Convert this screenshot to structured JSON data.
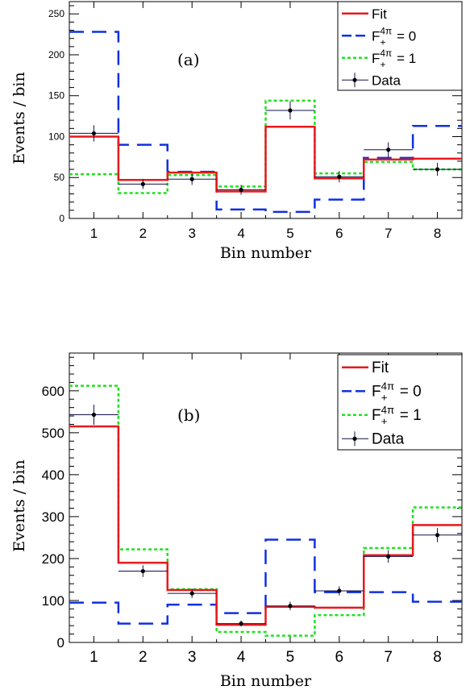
{
  "charts": [
    {
      "panel_label": "(a)",
      "xlabel": "Bin number",
      "ylabel": "Events / bin",
      "x_ticks": [
        "1",
        "2",
        "3",
        "4",
        "5",
        "6",
        "7",
        "8"
      ],
      "y_ticks": [
        "0",
        "50",
        "100",
        "150",
        "200",
        "250"
      ],
      "legend": [
        "Fit",
        "F+4π = 0",
        "F+4π = 1",
        "Data"
      ]
    },
    {
      "panel_label": "(b)",
      "xlabel": "Bin number",
      "ylabel": "Events / bin",
      "x_ticks": [
        "1",
        "2",
        "3",
        "4",
        "5",
        "6",
        "7",
        "8"
      ],
      "y_ticks": [
        "0",
        "100",
        "200",
        "300",
        "400",
        "500",
        "600"
      ],
      "legend": [
        "Fit",
        "F+4π = 0",
        "F+4π = 1",
        "Data"
      ]
    }
  ],
  "colors": {
    "fit": "#e8191c",
    "f0": "#1030e0",
    "f1": "#22e022",
    "data": "#10104a"
  },
  "chart_data": [
    {
      "type": "step-histogram",
      "categories": [
        "1",
        "2",
        "3",
        "4",
        "5",
        "6",
        "7",
        "8"
      ],
      "xlabel": "Bin number",
      "ylabel": "Events / bin",
      "ylim": [
        0,
        265
      ],
      "xlim": [
        0.5,
        8.5
      ],
      "legend_position": "top-right",
      "series": [
        {
          "name": "Fit",
          "style": "solid",
          "values": [
            100,
            47,
            56,
            33,
            112,
            49,
            72,
            73
          ]
        },
        {
          "name": "F+4π = 0",
          "style": "dashed",
          "values": [
            228,
            90,
            57,
            11,
            8,
            23,
            74,
            113
          ]
        },
        {
          "name": "F+4π = 1",
          "style": "dotted",
          "values": [
            54,
            31,
            53,
            39,
            144,
            55,
            69,
            60
          ]
        },
        {
          "name": "Data",
          "style": "points",
          "values": [
            104,
            42,
            48,
            35,
            132,
            51,
            84,
            60
          ],
          "errors": [
            10,
            6,
            7,
            6,
            11,
            7,
            9,
            8
          ]
        }
      ]
    },
    {
      "type": "step-histogram",
      "categories": [
        "1",
        "2",
        "3",
        "4",
        "5",
        "6",
        "7",
        "8"
      ],
      "xlabel": "Bin number",
      "ylabel": "Events / bin",
      "ylim": [
        0,
        690
      ],
      "xlim": [
        0.5,
        8.5
      ],
      "legend_position": "top-right",
      "series": [
        {
          "name": "Fit",
          "style": "solid",
          "values": [
            515,
            190,
            125,
            42,
            85,
            83,
            208,
            280
          ]
        },
        {
          "name": "F+4π = 0",
          "style": "dashed",
          "values": [
            95,
            45,
            90,
            70,
            245,
            120,
            120,
            97
          ]
        },
        {
          "name": "F+4π = 1",
          "style": "dotted",
          "values": [
            612,
            222,
            127,
            25,
            16,
            65,
            225,
            322
          ]
        },
        {
          "name": "Data",
          "style": "points",
          "values": [
            543,
            170,
            117,
            45,
            87,
            123,
            205,
            256
          ],
          "errors": [
            24,
            14,
            11,
            7,
            10,
            11,
            15,
            17
          ]
        }
      ]
    }
  ]
}
